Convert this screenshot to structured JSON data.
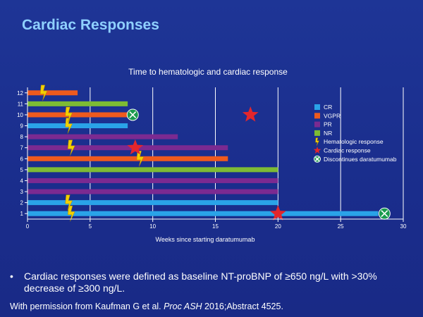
{
  "slide": {
    "title": "Cardiac Responses",
    "bullet_marker": "•",
    "bullet_text": "Cardiac responses were defined as baseline NT-proBNP of ≥650 ng/L with >30% decrease of ≥300 ng/L.",
    "citation_prefix": "With permission from Kaufman G et al. ",
    "citation_italic": "Proc ASH",
    "citation_suffix": " 2016;Abstract 4525."
  },
  "colors": {
    "CR": "#2aa3e8",
    "VGPR": "#ee5a1e",
    "PR": "#7b2a91",
    "NR": "#7dbb34",
    "hematologic": "#f2d000",
    "cardiac": "#e3262c",
    "discontinue": "#1a9a4e"
  },
  "chart_data": {
    "type": "bar",
    "orientation": "horizontal",
    "title": "Time to hematologic and cardiac response",
    "xlabel": "Weeks since starting daratumumab",
    "ylabel": "",
    "xlim": [
      0,
      30
    ],
    "xticks": [
      0,
      5,
      10,
      15,
      20,
      25,
      30
    ],
    "grid": true,
    "legend_position": "right",
    "legend": [
      {
        "key": "CR",
        "label": "CR",
        "kind": "square"
      },
      {
        "key": "VGPR",
        "label": "VGPR",
        "kind": "square"
      },
      {
        "key": "PR",
        "label": "PR",
        "kind": "square"
      },
      {
        "key": "NR",
        "label": "NR",
        "kind": "square"
      },
      {
        "key": "hematologic",
        "label": "Hematologic response",
        "kind": "bolt"
      },
      {
        "key": "cardiac",
        "label": "Cardiac response",
        "kind": "star"
      },
      {
        "key": "discontinue",
        "label": "Discontinues daratumumab",
        "kind": "xcircle"
      }
    ],
    "patients": [
      {
        "id": "1",
        "weeks": 28,
        "response": "CR"
      },
      {
        "id": "2",
        "weeks": 20,
        "response": "CR"
      },
      {
        "id": "3",
        "weeks": 20,
        "response": "PR"
      },
      {
        "id": "4",
        "weeks": 20,
        "response": "PR"
      },
      {
        "id": "5",
        "weeks": 20,
        "response": "NR"
      },
      {
        "id": "6",
        "weeks": 16,
        "response": "VGPR"
      },
      {
        "id": "7",
        "weeks": 16,
        "response": "PR"
      },
      {
        "id": "8",
        "weeks": 12,
        "response": "PR"
      },
      {
        "id": "9",
        "weeks": 8,
        "response": "CR"
      },
      {
        "id": "10",
        "weeks": 8,
        "response": "VGPR"
      },
      {
        "id": "11",
        "weeks": 8,
        "response": "NR"
      },
      {
        "id": "12",
        "weeks": 4,
        "response": "VGPR"
      }
    ],
    "hematologic_response": [
      {
        "patient": "1",
        "week": 3.5
      },
      {
        "patient": "2",
        "week": 3.3
      },
      {
        "patient": "6",
        "week": 9.0
      },
      {
        "patient": "7",
        "week": 3.5
      },
      {
        "patient": "9",
        "week": 3.3
      },
      {
        "patient": "10",
        "week": 3.3
      },
      {
        "patient": "12",
        "week": 1.3
      }
    ],
    "cardiac_response": [
      {
        "patient": "1",
        "week": 20
      },
      {
        "patient": "7",
        "week": 8.6
      },
      {
        "patient": "10",
        "week": 17.8
      }
    ],
    "discontinues": [
      {
        "patient": "1",
        "week": 28.5
      },
      {
        "patient": "10",
        "week": 8.4
      }
    ]
  }
}
